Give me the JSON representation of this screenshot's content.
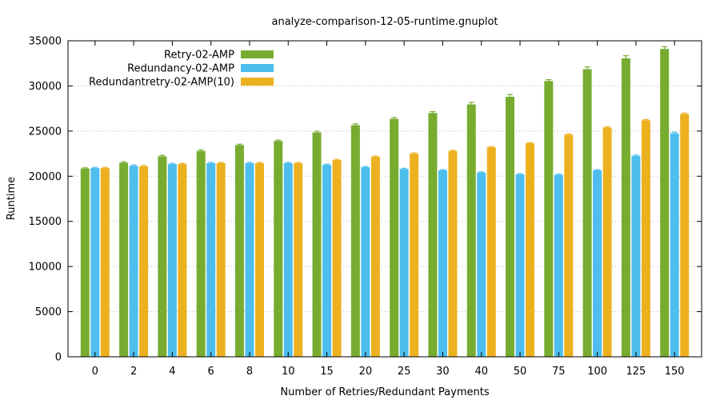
{
  "chart_data": {
    "type": "bar",
    "title": "analyze-comparison-12-05-runtime.gnuplot",
    "xlabel": "Number of Retries/Redundant Payments",
    "ylabel": "Runtime",
    "ylim": [
      0,
      35000
    ],
    "yticks": [
      0,
      5000,
      10000,
      15000,
      20000,
      25000,
      30000,
      35000
    ],
    "grid": "horizontal dotted",
    "legend_position": "top-left",
    "categories": [
      "0",
      "2",
      "4",
      "6",
      "8",
      "10",
      "15",
      "20",
      "25",
      "30",
      "40",
      "50",
      "75",
      "100",
      "125",
      "150"
    ],
    "series": [
      {
        "name": "Retry-02-AMP",
        "color": "#77ac30",
        "values": [
          20850,
          21500,
          22200,
          22800,
          23450,
          23900,
          24850,
          25650,
          26350,
          27000,
          27950,
          28800,
          30550,
          31850,
          33050,
          34100
        ],
        "errors": [
          80,
          100,
          120,
          120,
          100,
          100,
          130,
          150,
          150,
          150,
          220,
          250,
          150,
          250,
          300,
          250
        ]
      },
      {
        "name": "Redundancy-02-AMP",
        "color": "#4dbeee",
        "values": [
          20900,
          21150,
          21350,
          21450,
          21450,
          21450,
          21250,
          21000,
          20800,
          20650,
          20400,
          20200,
          20150,
          20650,
          22250,
          24750
        ],
        "errors": [
          80,
          100,
          80,
          80,
          80,
          80,
          80,
          80,
          80,
          80,
          80,
          80,
          80,
          80,
          100,
          120
        ]
      },
      {
        "name": "Redundantretry-02-AMP(10)",
        "color": "#edb120",
        "values": [
          20900,
          21100,
          21350,
          21450,
          21450,
          21450,
          21800,
          22150,
          22500,
          22800,
          23200,
          23650,
          24600,
          25400,
          26200,
          26900
        ],
        "errors": [
          80,
          100,
          80,
          80,
          80,
          80,
          80,
          80,
          80,
          80,
          80,
          80,
          80,
          80,
          80,
          100
        ]
      }
    ]
  }
}
